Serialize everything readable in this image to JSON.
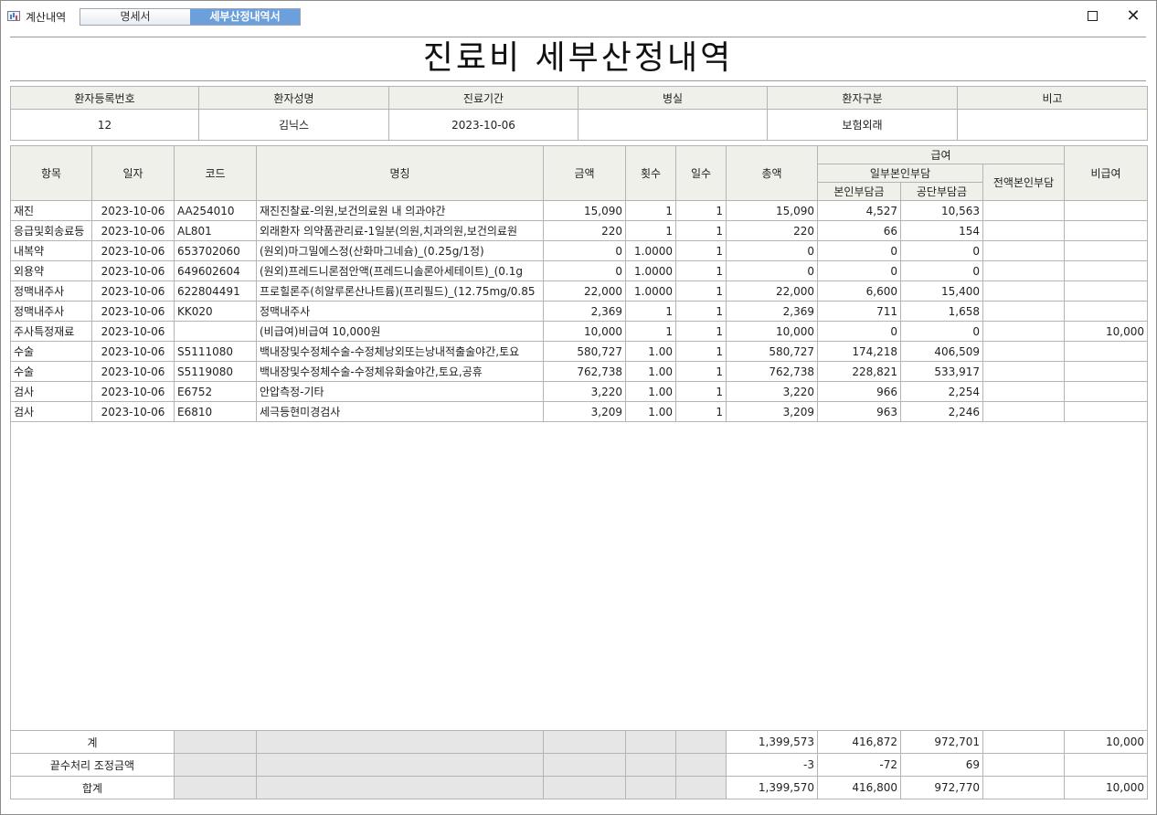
{
  "window": {
    "app_title": "계산내역",
    "tabs": [
      {
        "label": "명세서",
        "active": false
      },
      {
        "label": "세부산정내역서",
        "active": true
      }
    ],
    "maximize_label": "",
    "close_label": "✕"
  },
  "report_title": "진료비  세부산정내역",
  "patient": {
    "headers": [
      "환자등록번호",
      "환자성명",
      "진료기간",
      "병실",
      "환자구분",
      "비고"
    ],
    "values": [
      "12",
      "김닉스",
      "2023-10-06",
      "",
      "보험외래",
      ""
    ]
  },
  "columns": {
    "item": "항목",
    "date": "일자",
    "code": "코드",
    "name": "명칭",
    "amount": "금액",
    "count": "횟수",
    "days": "일수",
    "total": "총액",
    "covered": "급여",
    "partial": "일부본인부담",
    "patient_share": "본인부담금",
    "insurer_share": "공단부담금",
    "full_self": "전액본인부담",
    "non_covered": "비급여"
  },
  "rows": [
    {
      "item": "재진",
      "date": "2023-10-06",
      "code": "AA254010",
      "name": "재진진찰료-의원,보건의료원 내 의과야간",
      "amount": "15,090",
      "count": "1",
      "days": "1",
      "total": "15,090",
      "patient": "4,527",
      "insurer": "10,563",
      "full": "",
      "noncov": ""
    },
    {
      "item": "응급및회송료등",
      "date": "2023-10-06",
      "code": "AL801",
      "name": "외래환자 의약품관리료-1일분(의원,치과의원,보건의료원",
      "amount": "220",
      "count": "1",
      "days": "1",
      "total": "220",
      "patient": "66",
      "insurer": "154",
      "full": "",
      "noncov": ""
    },
    {
      "item": "내복약",
      "date": "2023-10-06",
      "code": "653702060",
      "name": "(원외)마그밀에스정(산화마그네슘)_(0.25g/1정)",
      "amount": "0",
      "count": "1.0000",
      "days": "1",
      "total": "0",
      "patient": "0",
      "insurer": "0",
      "full": "",
      "noncov": ""
    },
    {
      "item": "외용약",
      "date": "2023-10-06",
      "code": "649602604",
      "name": "(원외)프레드니론점안액(프레드니솔론아세테이트)_(0.1g",
      "amount": "0",
      "count": "1.0000",
      "days": "1",
      "total": "0",
      "patient": "0",
      "insurer": "0",
      "full": "",
      "noncov": ""
    },
    {
      "item": "정맥내주사",
      "date": "2023-10-06",
      "code": "622804491",
      "name": "프로힐론주(히알루론산나트륨)(프리필드)_(12.75mg/0.85",
      "amount": "22,000",
      "count": "1.0000",
      "days": "1",
      "total": "22,000",
      "patient": "6,600",
      "insurer": "15,400",
      "full": "",
      "noncov": ""
    },
    {
      "item": "정맥내주사",
      "date": "2023-10-06",
      "code": "KK020",
      "name": "정맥내주사",
      "amount": "2,369",
      "count": "1",
      "days": "1",
      "total": "2,369",
      "patient": "711",
      "insurer": "1,658",
      "full": "",
      "noncov": ""
    },
    {
      "item": "주사특정재료",
      "date": "2023-10-06",
      "code": "",
      "name": "(비급여)비급여 10,000원",
      "amount": "10,000",
      "count": "1",
      "days": "1",
      "total": "10,000",
      "patient": "0",
      "insurer": "0",
      "full": "",
      "noncov": "10,000"
    },
    {
      "item": "수술",
      "date": "2023-10-06",
      "code": "S5111080",
      "name": "백내장및수정체수술-수정체낭외또는낭내적출술야간,토요",
      "amount": "580,727",
      "count": "1.00",
      "days": "1",
      "total": "580,727",
      "patient": "174,218",
      "insurer": "406,509",
      "full": "",
      "noncov": ""
    },
    {
      "item": "수술",
      "date": "2023-10-06",
      "code": "S5119080",
      "name": "백내장및수정체수술-수정체유화술야간,토요,공휴",
      "amount": "762,738",
      "count": "1.00",
      "days": "1",
      "total": "762,738",
      "patient": "228,821",
      "insurer": "533,917",
      "full": "",
      "noncov": ""
    },
    {
      "item": "검사",
      "date": "2023-10-06",
      "code": "E6752",
      "name": "안압측정-기타",
      "amount": "3,220",
      "count": "1.00",
      "days": "1",
      "total": "3,220",
      "patient": "966",
      "insurer": "2,254",
      "full": "",
      "noncov": ""
    },
    {
      "item": "검사",
      "date": "2023-10-06",
      "code": "E6810",
      "name": "세극등현미경검사",
      "amount": "3,209",
      "count": "1.00",
      "days": "1",
      "total": "3,209",
      "patient": "963",
      "insurer": "2,246",
      "full": "",
      "noncov": ""
    }
  ],
  "footer": [
    {
      "label": "계",
      "total": "1,399,573",
      "patient": "416,872",
      "insurer": "972,701",
      "full": "",
      "noncov": "10,000"
    },
    {
      "label": "끝수처리 조정금액",
      "total": "-3",
      "patient": "-72",
      "insurer": "69",
      "full": "",
      "noncov": ""
    },
    {
      "label": "합계",
      "total": "1,399,570",
      "patient": "416,800",
      "insurer": "972,770",
      "full": "",
      "noncov": "10,000"
    }
  ]
}
